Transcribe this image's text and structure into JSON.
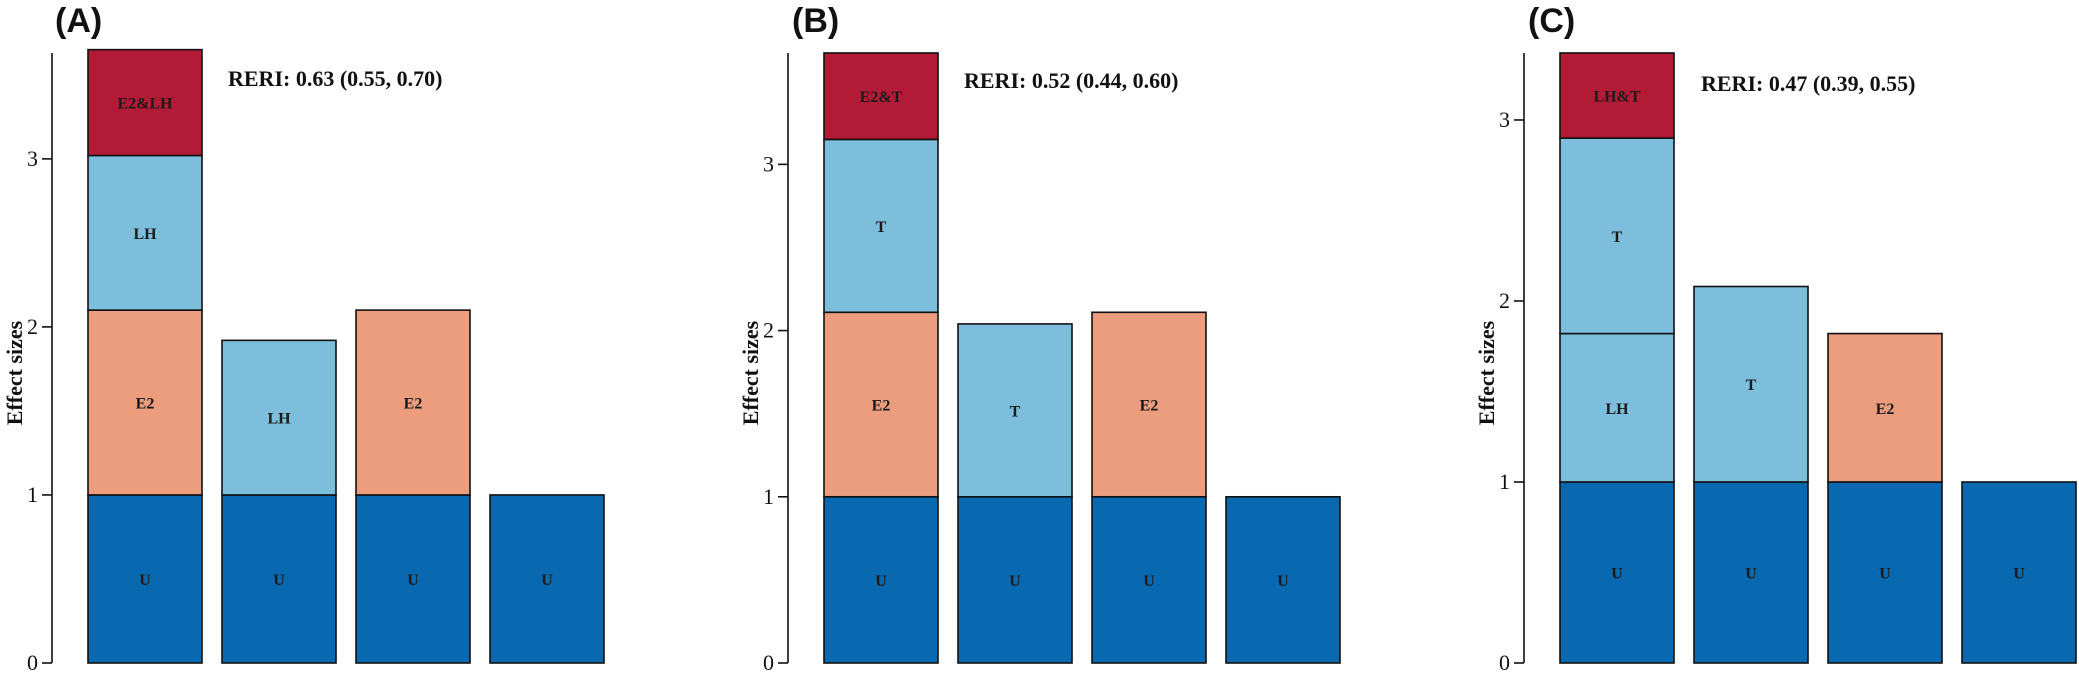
{
  "colors": {
    "U": "#0868B0",
    "E2": "#EB9D7E",
    "LH": "#7DBEDC",
    "T": "#7DBEDC",
    "E2&LH": "#B31A36",
    "E2&T": "#B31A36",
    "LH&T": "#B31A36"
  },
  "chart_data": [
    {
      "type": "bar",
      "stacked": true,
      "panel": "(A)",
      "annotation": "RERI: 0.63 (0.55, 0.70)",
      "ylabel": "Effect sizes",
      "ylim": [
        0,
        3.63
      ],
      "yticks": [
        0,
        1,
        2,
        3
      ],
      "bars": [
        {
          "segments": [
            {
              "label": "U",
              "value": 1.0
            },
            {
              "label": "E2",
              "value": 1.1
            },
            {
              "label": "LH",
              "value": 0.92
            },
            {
              "label": "E2&LH",
              "value": 0.63
            }
          ]
        },
        {
          "segments": [
            {
              "label": "U",
              "value": 1.0
            },
            {
              "label": "LH",
              "value": 0.92
            }
          ]
        },
        {
          "segments": [
            {
              "label": "U",
              "value": 1.0
            },
            {
              "label": "E2",
              "value": 1.1
            }
          ]
        },
        {
          "segments": [
            {
              "label": "U",
              "value": 1.0
            }
          ]
        }
      ]
    },
    {
      "type": "bar",
      "stacked": true,
      "panel": "(B)",
      "annotation": "RERI: 0.52 (0.44, 0.60)",
      "ylabel": "Effect sizes",
      "ylim": [
        0,
        3.67
      ],
      "yticks": [
        0,
        1,
        2,
        3
      ],
      "bars": [
        {
          "segments": [
            {
              "label": "U",
              "value": 1.0
            },
            {
              "label": "E2",
              "value": 1.11
            },
            {
              "label": "T",
              "value": 1.04
            },
            {
              "label": "E2&T",
              "value": 0.52
            }
          ]
        },
        {
          "segments": [
            {
              "label": "U",
              "value": 1.0
            },
            {
              "label": "T",
              "value": 1.04
            }
          ]
        },
        {
          "segments": [
            {
              "label": "U",
              "value": 1.0
            },
            {
              "label": "E2",
              "value": 1.11
            }
          ]
        },
        {
          "segments": [
            {
              "label": "U",
              "value": 1.0
            }
          ]
        }
      ]
    },
    {
      "type": "bar",
      "stacked": true,
      "panel": "(C)",
      "annotation": "RERI: 0.47 (0.39, 0.55)",
      "ylabel": "Effect sizes",
      "ylim": [
        0,
        3.37
      ],
      "yticks": [
        0,
        1,
        2,
        3
      ],
      "bars": [
        {
          "segments": [
            {
              "label": "U",
              "value": 1.0
            },
            {
              "label": "LH",
              "value": 0.82
            },
            {
              "label": "T",
              "value": 1.08
            },
            {
              "label": "LH&T",
              "value": 0.47
            }
          ]
        },
        {
          "segments": [
            {
              "label": "U",
              "value": 1.0
            },
            {
              "label": "T",
              "value": 1.08
            }
          ]
        },
        {
          "segments": [
            {
              "label": "U",
              "value": 1.0
            },
            {
              "label": "E2",
              "value": 0.82
            }
          ]
        },
        {
          "segments": [
            {
              "label": "U",
              "value": 1.0
            }
          ]
        }
      ]
    }
  ]
}
